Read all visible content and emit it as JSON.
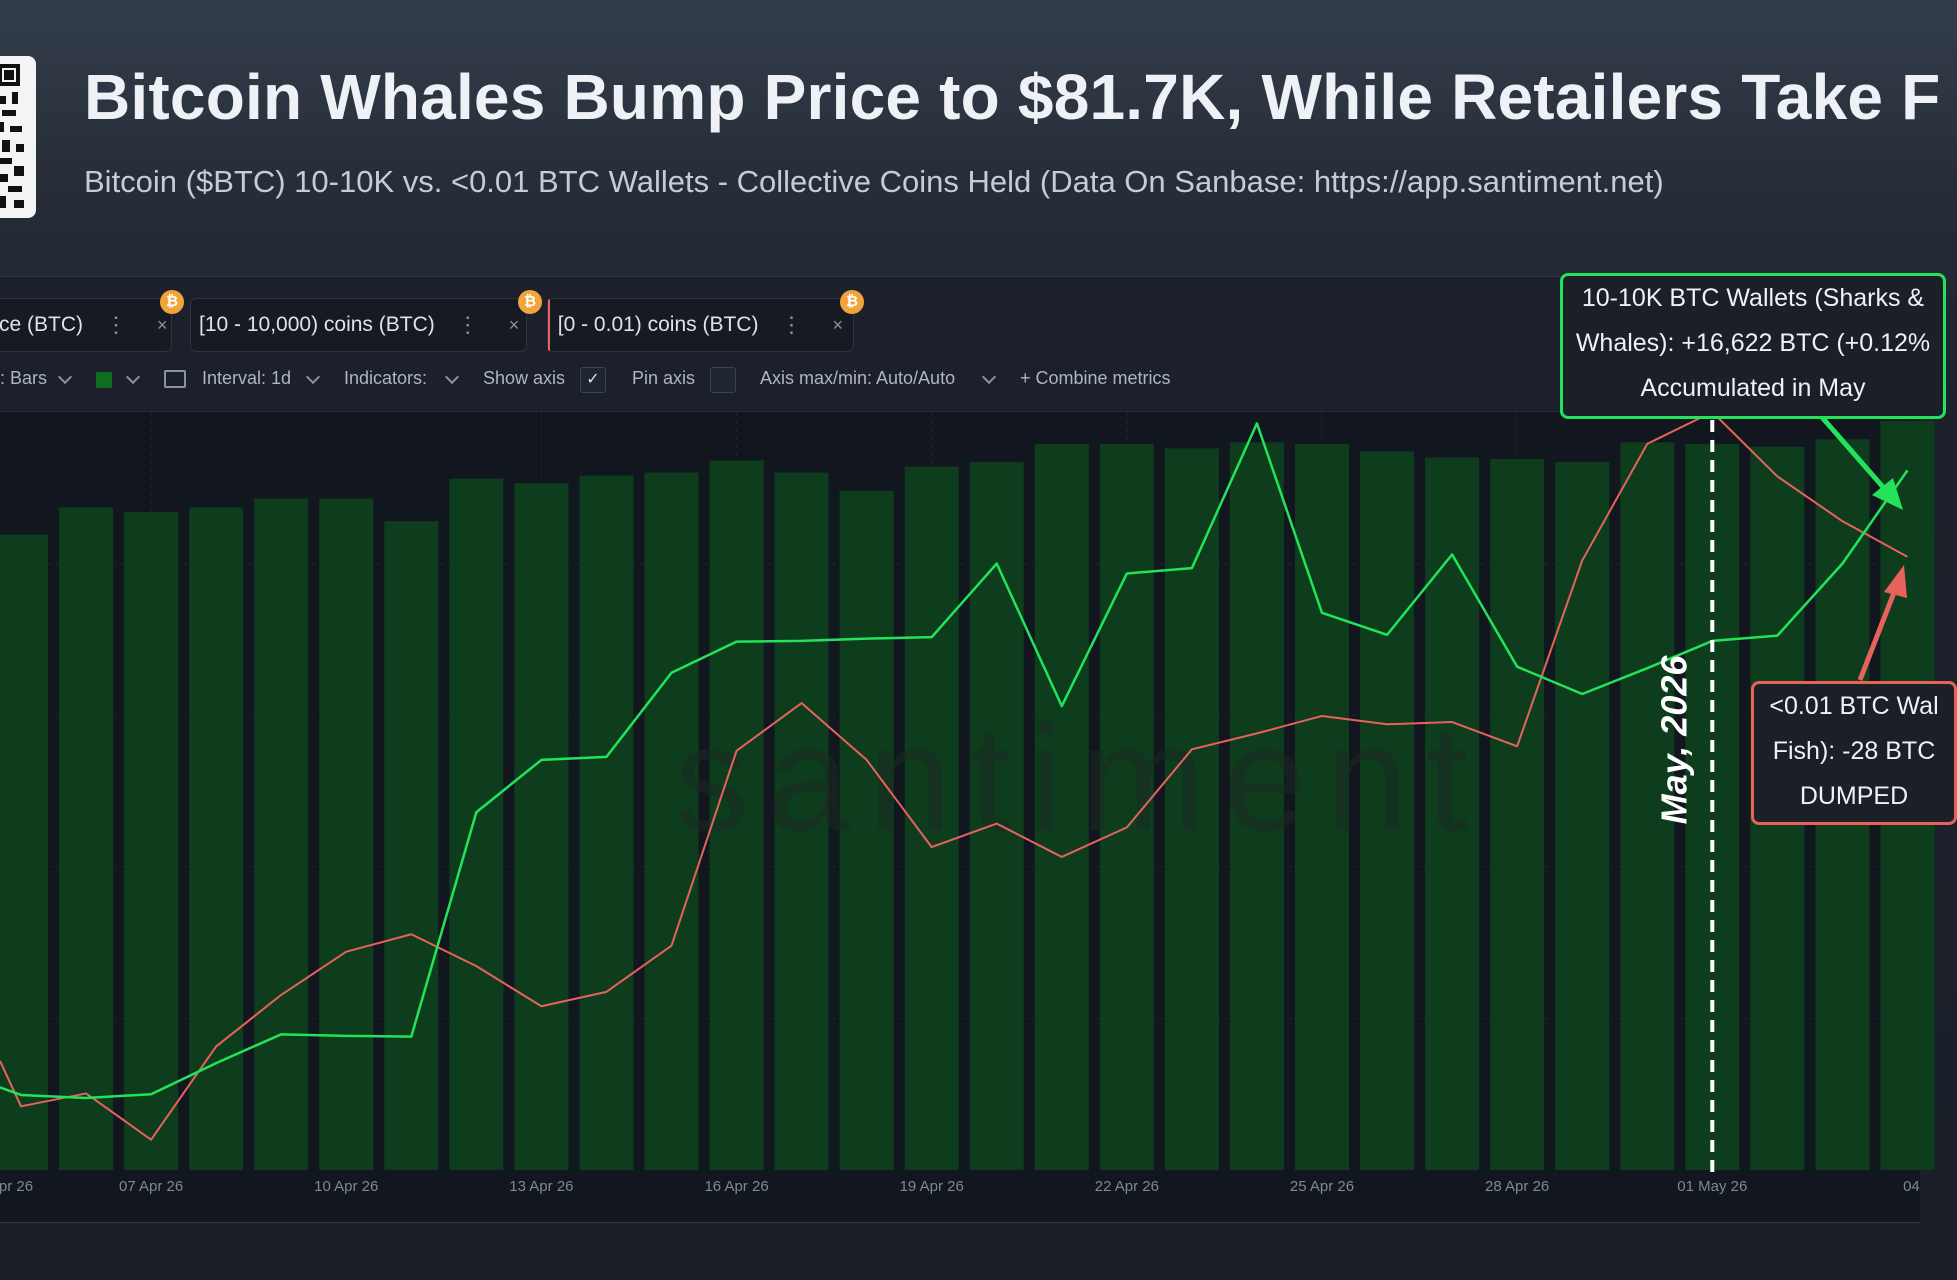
{
  "header": {
    "title": "Bitcoin Whales Bump Price to $81.7K, While Retailers Take F",
    "subtitle": "Bitcoin ($BTC) 10-10K vs. <0.01 BTC Wallets - Collective Coins Held (Data On Sanbase: https://app.santiment.net)"
  },
  "metrics": [
    {
      "label": "ce (BTC)",
      "color": "#1f6b33"
    },
    {
      "label": "[10 - 10,000) coins (BTC)",
      "color": "#22e35a"
    },
    {
      "label": "[0 - 0.01) coins (BTC)",
      "color": "#e8625c"
    }
  ],
  "coin_glyph": "₿",
  "chip_menu_icon": "⋮",
  "chip_close_icon": "×",
  "toolbar": {
    "chart_style": ": Bars",
    "interval": "Interval: 1d",
    "indicators": "Indicators:",
    "show_axis": "Show axis",
    "show_axis_checked": true,
    "pin_axis": "Pin axis",
    "pin_axis_checked": false,
    "axis_maxmin": "Axis max/min: Auto/Auto",
    "combine": "+  Combine metrics",
    "check_glyph": "✓"
  },
  "watermark": "santiment",
  "annotations": {
    "sharks": [
      "10-10K BTC Wallets (Sharks &",
      "Whales): +16,622 BTC (+0.12%",
      "Accumulated in May"
    ],
    "fish": [
      "<0.01 BTC Wal",
      "Fish): -28 BTC",
      "DUMPED"
    ],
    "divider_label": "May, 2026"
  },
  "chart_data": {
    "type": "bar",
    "title": "Bitcoin Whales Bump Price to $81.7K, While Retailers Take F",
    "x_tick_labels": [
      "pr 26",
      "07 Apr 26",
      "10 Apr 26",
      "13 Apr 26",
      "16 Apr 26",
      "19 Apr 26",
      "22 Apr 26",
      "25 Apr 26",
      "28 Apr 26",
      "01 May 26",
      "04"
    ],
    "x_tick_index": [
      0,
      2,
      5,
      8,
      11,
      14,
      17,
      20,
      23,
      26,
      29
    ],
    "x_start_day": 0,
    "x_end_day": 29.1,
    "grid": true,
    "y_axis_shown": false,
    "vertical_marker": {
      "day": 26,
      "label": "May, 2026"
    },
    "series": [
      {
        "name": "ce (BTC)",
        "type": "bar",
        "color": "#0d3d1d",
        "values": [
          0.838,
          0.874,
          0.868,
          0.874,
          0.886,
          0.886,
          0.856,
          0.912,
          0.906,
          0.916,
          0.92,
          0.936,
          0.92,
          0.896,
          0.928,
          0.934,
          0.958,
          0.958,
          0.952,
          0.96,
          0.958,
          0.948,
          0.94,
          0.938,
          0.934,
          0.96,
          0.958,
          0.954,
          0.964,
          0.988
        ]
      },
      {
        "name": "[10 - 10,000) coins (BTC)",
        "type": "line",
        "color": "#22e35a",
        "values": [
          0.099,
          0.095,
          0.1,
          0.141,
          0.179,
          0.177,
          0.176,
          0.472,
          0.541,
          0.545,
          0.656,
          0.697,
          0.698,
          0.701,
          0.703,
          0.8,
          0.612,
          0.787,
          0.794,
          0.985,
          0.735,
          0.706,
          0.812,
          0.664,
          0.628,
          0.662,
          0.698,
          0.705,
          0.8,
          0.923
        ]
      },
      {
        "name": "[0 - 0.01) coins (BTC)",
        "type": "line",
        "color": "#e8625c",
        "values": [
          0.084,
          0.101,
          0.04,
          0.163,
          0.231,
          0.288,
          0.311,
          0.269,
          0.216,
          0.235,
          0.296,
          0.553,
          0.616,
          0.541,
          0.426,
          0.457,
          0.413,
          0.452,
          0.555,
          0.576,
          0.599,
          0.588,
          0.591,
          0.559,
          0.804,
          0.958,
          1.0,
          0.915,
          0.856,
          0.809
        ]
      }
    ]
  }
}
